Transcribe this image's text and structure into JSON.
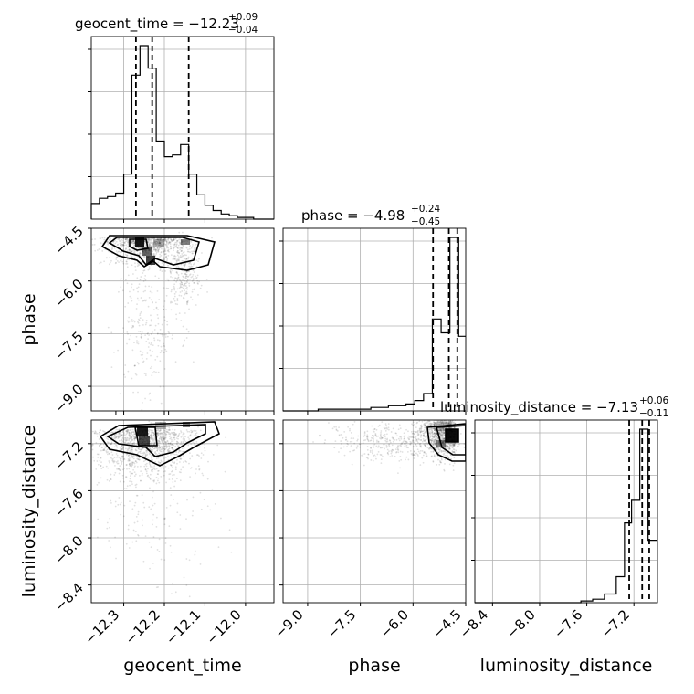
{
  "chart_data": {
    "type": "corner",
    "parameters": [
      {
        "name": "geocent_time",
        "axis_label": "geocent_time",
        "title_main": "geocent_time = −12.23",
        "title_plus": "+0.09",
        "title_minus": "−0.04",
        "range": [
          -12.38,
          -11.93
        ],
        "ticks": [
          -12.3,
          -12.2,
          -12.1,
          -12.0
        ],
        "tick_labels": [
          "−12.3",
          "−12.2",
          "−12.1",
          "−12.0"
        ],
        "quantiles": [
          -12.27,
          -12.23,
          -12.14
        ],
        "histogram": {
          "bin_edges": [
            -12.38,
            -12.36,
            -12.34,
            -12.32,
            -12.3,
            -12.28,
            -12.26,
            -12.24,
            -12.22,
            -12.2,
            -12.18,
            -12.16,
            -12.14,
            -12.12,
            -12.1,
            -12.08,
            -12.06,
            -12.04,
            -12.02,
            -12.0,
            -11.98,
            -11.96,
            -11.93
          ],
          "counts": [
            9,
            12,
            13,
            15,
            26,
            83,
            100,
            87,
            45,
            36,
            37,
            43,
            26,
            14,
            8,
            5,
            3,
            2,
            1,
            1,
            0,
            0
          ]
        }
      },
      {
        "name": "phase",
        "axis_label": "phase",
        "title_main": "phase = −4.98",
        "title_plus": "+0.24",
        "title_minus": "−0.45",
        "range": [
          -9.7,
          -4.5
        ],
        "ticks": [
          -9.0,
          -7.5,
          -6.0,
          -4.5
        ],
        "tick_labels": [
          "−9.0",
          "−7.5",
          "−6.0",
          "−4.5"
        ],
        "quantiles": [
          -5.43,
          -4.98,
          -4.74
        ],
        "histogram": {
          "bin_edges": [
            -9.7,
            -9.45,
            -9.2,
            -8.95,
            -8.7,
            -8.45,
            -8.2,
            -7.95,
            -7.7,
            -7.45,
            -7.2,
            -6.95,
            -6.7,
            -6.45,
            -6.2,
            -5.95,
            -5.7,
            -5.45,
            -5.2,
            -4.95,
            -4.7,
            -4.5
          ],
          "counts": [
            0,
            0,
            0,
            0,
            1,
            1,
            1,
            1,
            1,
            1,
            2,
            2,
            3,
            3,
            4,
            6,
            10,
            53,
            45,
            100,
            43
          ]
        }
      },
      {
        "name": "luminosity_distance",
        "axis_label": "luminosity_distance",
        "title_main": "luminosity_distance = −7.13",
        "title_plus": "+0.06",
        "title_minus": "−0.11",
        "range": [
          -8.55,
          -7.0
        ],
        "ticks": [
          -8.4,
          -8.0,
          -7.6,
          -7.2
        ],
        "tick_labels": [
          "−8.4",
          "−8.0",
          "−7.6",
          "−7.2"
        ],
        "quantiles": [
          -7.24,
          -7.13,
          -7.07
        ],
        "histogram": {
          "bin_edges": [
            -8.55,
            -8.45,
            -8.35,
            -8.25,
            -8.15,
            -8.05,
            -7.95,
            -7.85,
            -7.75,
            -7.65,
            -7.55,
            -7.45,
            -7.35,
            -7.28,
            -7.22,
            -7.15,
            -7.08,
            -7.0
          ],
          "counts": [
            0,
            0,
            0,
            0,
            0,
            0,
            0,
            0,
            0,
            1,
            2,
            5,
            15,
            46,
            59,
            100,
            36
          ]
        }
      }
    ],
    "pairs": [
      {
        "x": "geocent_time",
        "y": "phase"
      },
      {
        "x": "geocent_time",
        "y": "luminosity_distance"
      },
      {
        "x": "phase",
        "y": "luminosity_distance"
      }
    ],
    "grid": true
  }
}
